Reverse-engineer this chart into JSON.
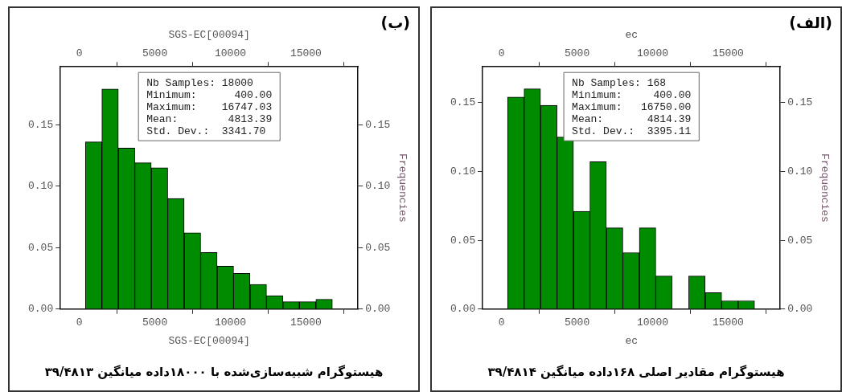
{
  "chart_data": [
    {
      "type": "histogram",
      "xlabel": "SGS-EC[00094]",
      "x2label": "SGS-EC[00094]",
      "y2label": "Frequencies",
      "bins": [
        400,
        1490,
        2580,
        3670,
        4760,
        5850,
        6940,
        8030,
        9120,
        10210,
        11300,
        12390,
        13480,
        14570,
        15660,
        16750
      ],
      "values": [
        0.136,
        0.179,
        0.131,
        0.119,
        0.115,
        0.09,
        0.062,
        0.046,
        0.035,
        0.029,
        0.02,
        0.011,
        0.006,
        0.006,
        0.008
      ],
      "color": "#008c00",
      "xlim": [
        -1250,
        18450
      ],
      "xticks": [
        0,
        5000,
        10000,
        15000
      ],
      "x2lim": [
        -1250,
        18450
      ],
      "x2ticks": [
        0,
        5000,
        10000,
        15000
      ],
      "ylim": [
        0,
        0.197
      ],
      "yticks": [
        {
          "value": 0,
          "label": "0.00"
        },
        {
          "value": 0.05,
          "label": "0.05"
        },
        {
          "value": 0.1,
          "label": "0.10"
        },
        {
          "value": 0.15,
          "label": "0.15"
        }
      ],
      "y2lim": [
        0,
        0.197
      ],
      "y2ticks": [
        {
          "value": 0,
          "label": "0.00"
        },
        {
          "value": 0.05,
          "label": "0.05"
        },
        {
          "value": 0.1,
          "label": "0.10"
        },
        {
          "value": 0.15,
          "label": "0.15"
        }
      ],
      "annotations": [
        "(ب)",
        "Nb Samples: 18000",
        "Minimum:      400.00",
        "Maximum:    16747.03",
        "Mean:        4813.39",
        "Std. Dev.:  3341.70",
        "هیستوگرام شبیه‌سازی‌شده با ۱۸۰۰۰داده میانگین ۳۹/۴۸۱۳"
      ]
    },
    {
      "type": "histogram",
      "xlabel": "ec",
      "x2label": "ec",
      "y2label": "Frequencies",
      "bins": [
        400,
        1490,
        2580,
        3670,
        4760,
        5850,
        6940,
        8030,
        9120,
        10210,
        11300,
        12390,
        13480,
        14570,
        15660,
        16750
      ],
      "values": [
        0.154,
        0.16,
        0.148,
        0.125,
        0.071,
        0.107,
        0.059,
        0.041,
        0.059,
        0.024,
        0,
        0.024,
        0.012,
        0.006,
        0.006
      ],
      "color": "#008c00",
      "xlim": [
        -1250,
        18450
      ],
      "xticks": [
        0,
        5000,
        10000,
        15000
      ],
      "x2lim": [
        -1250,
        18450
      ],
      "x2ticks": [
        0,
        5000,
        10000,
        15000
      ],
      "ylim": [
        0,
        0.176
      ],
      "yticks": [
        {
          "value": 0,
          "label": "0.00"
        },
        {
          "value": 0.05,
          "label": "0.05"
        },
        {
          "value": 0.1,
          "label": "0.10"
        },
        {
          "value": 0.15,
          "label": "0.15"
        }
      ],
      "y2lim": [
        0,
        0.176
      ],
      "y2ticks": [
        {
          "value": 0,
          "label": "0.00"
        },
        {
          "value": 0.05,
          "label": "0.05"
        },
        {
          "value": 0.1,
          "label": "0.10"
        },
        {
          "value": 0.15,
          "label": "0.15"
        }
      ],
      "annotations": [
        "(الف)",
        "Nb Samples: 168",
        "Minimum:     400.00",
        "Maximum:   16750.00",
        "Mean:       4814.39",
        "Std. Dev.:  3395.11",
        "هیستوگرام مقادیر اصلی ۱۶۸داده میانگین ۳۹/۴۸۱۴"
      ]
    }
  ]
}
